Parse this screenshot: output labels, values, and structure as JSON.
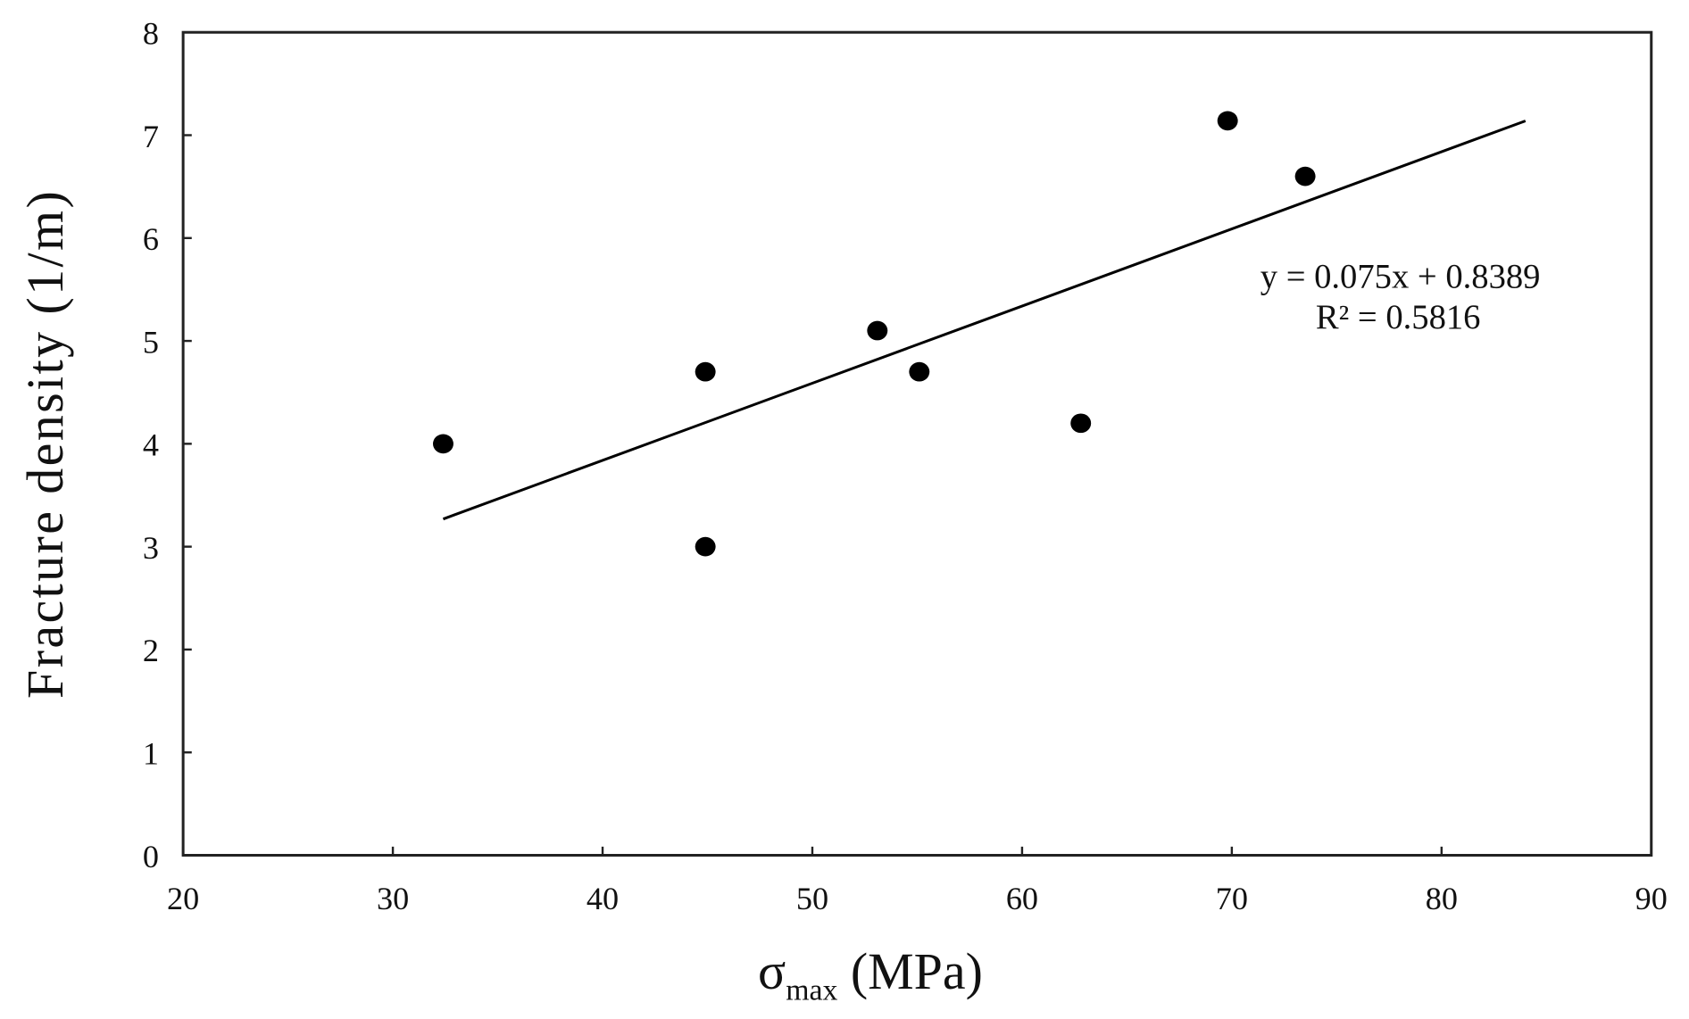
{
  "chart_data": {
    "type": "scatter",
    "xlabel": "σ",
    "xlabel_sub": "max",
    "xlabel_unit": " (MPa)",
    "ylabel": "Fracture density (1/m)",
    "xlim": [
      20,
      90
    ],
    "ylim": [
      0,
      8
    ],
    "xticks": [
      20,
      30,
      40,
      50,
      60,
      70,
      80,
      90
    ],
    "yticks": [
      0,
      1,
      2,
      3,
      4,
      5,
      6,
      7,
      8
    ],
    "grid": false,
    "points": [
      {
        "x": 32.4,
        "y": 4.0
      },
      {
        "x": 44.9,
        "y": 4.7
      },
      {
        "x": 44.9,
        "y": 3.0
      },
      {
        "x": 53.1,
        "y": 5.1
      },
      {
        "x": 55.1,
        "y": 4.7
      },
      {
        "x": 62.8,
        "y": 4.2
      },
      {
        "x": 69.8,
        "y": 7.14
      },
      {
        "x": 73.5,
        "y": 6.6
      }
    ],
    "trendline": {
      "slope": 0.075,
      "intercept": 0.8389,
      "x_range": [
        32.4,
        84
      ]
    },
    "annotations": {
      "equation": "y = 0.075x + 0.8389",
      "r_squared": "R² = 0.5816"
    },
    "colors": {
      "points": "#000000",
      "line": "#000000",
      "frame": "#222222"
    }
  }
}
